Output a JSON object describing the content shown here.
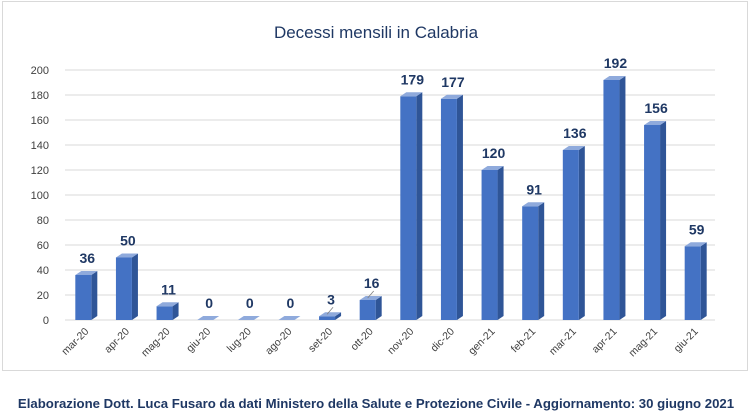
{
  "chart_data": {
    "type": "bar",
    "title": "Decessi mensili in Calabria",
    "categories": [
      "mar-20",
      "apr-20",
      "mag-20",
      "giu-20",
      "lug-20",
      "ago-20",
      "set-20",
      "ott-20",
      "nov-20",
      "dic-20",
      "gen-21",
      "feb-21",
      "mar-21",
      "apr-21",
      "mag-21",
      "giu-21"
    ],
    "values": [
      36,
      50,
      11,
      0,
      0,
      0,
      3,
      16,
      179,
      177,
      120,
      91,
      136,
      192,
      156,
      59
    ],
    "yticks": [
      "0",
      "20",
      "40",
      "60",
      "80",
      "100",
      "120",
      "140",
      "160",
      "180",
      "200"
    ],
    "ylim": [
      0,
      200
    ],
    "grid": true,
    "data_labels": true,
    "legend": "none",
    "colors": {
      "bar_front": "#4472c4",
      "bar_side": "#2f5597",
      "bar_top": "#8faadc",
      "label": "#1f3864"
    }
  },
  "footer": "Elaborazione Dott. Luca Fusaro da dati Ministero della Salute e Protezione Civile - Aggiornamento: 30 giugno 2021"
}
